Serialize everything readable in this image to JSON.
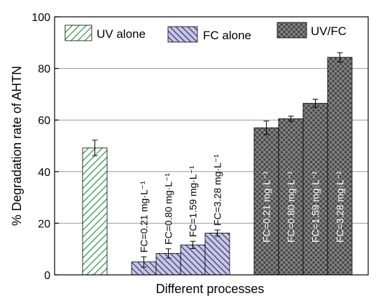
{
  "chart_data": {
    "type": "bar",
    "ylabel": "% Degradation rate of AHTN",
    "xlabel": "Different processes",
    "ylim": [
      0,
      100
    ],
    "yticks": [
      0,
      20,
      40,
      60,
      80,
      100
    ],
    "grid": "horizontal",
    "legend_position": "top",
    "groups": [
      {
        "name": "UV alone",
        "color": "#2e9a50",
        "pattern": "hatch-diagonal",
        "bars": [
          {
            "label": "",
            "value": 49.2,
            "error": 3.0
          }
        ]
      },
      {
        "name": "FC alone",
        "color": "#2c2c8c",
        "pattern": "hatch-diagonal-dark",
        "bars": [
          {
            "label": "FC=0.21 mg·L⁻¹",
            "value": 5.0,
            "error": 2.0
          },
          {
            "label": "FC=0.80 mg·L⁻¹",
            "value": 8.3,
            "error": 1.8
          },
          {
            "label": "FC=1.59 mg·L⁻¹",
            "value": 11.6,
            "error": 1.4
          },
          {
            "label": "FC=3.28 mg·L⁻¹",
            "value": 16.2,
            "error": 1.2
          }
        ]
      },
      {
        "name": "UV/FC",
        "color": "#444444",
        "pattern": "crosshatch",
        "bars": [
          {
            "label": "FC=0.21 mg·L⁻¹",
            "value": 57.0,
            "error": 2.6
          },
          {
            "label": "FC=0.80 mg·L⁻¹",
            "value": 60.5,
            "error": 1.0
          },
          {
            "label": "FC=1.59 mg·L⁻¹",
            "value": 66.5,
            "error": 1.6
          },
          {
            "label": "FC=3.28 mg·L⁻¹",
            "value": 84.3,
            "error": 1.8
          }
        ]
      }
    ]
  }
}
